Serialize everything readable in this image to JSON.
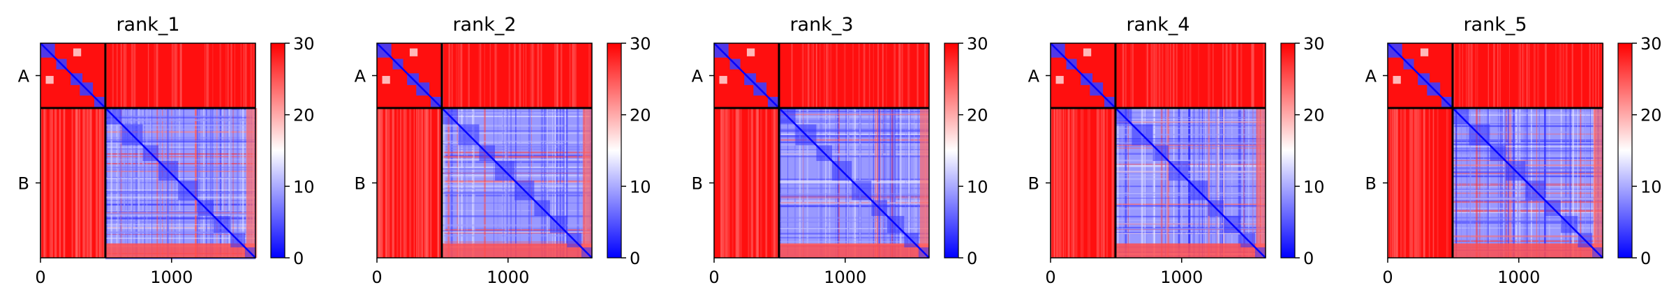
{
  "chart_data": {
    "type": "heatmap",
    "colormap": {
      "name": "bwr",
      "stops": [
        "#0000ff",
        "#ffffff",
        "#ff0000"
      ],
      "range": [
        0,
        30
      ],
      "ticks": [
        "0",
        "10",
        "20",
        "30"
      ]
    },
    "x_ticks": [
      "0",
      "1000"
    ],
    "x_tick_values": [
      0,
      1000
    ],
    "x_range": [
      0,
      1640
    ],
    "chain_labels": [
      "A",
      "B"
    ],
    "chain_boundary": 495,
    "panels": [
      {
        "title": "rank_1"
      },
      {
        "title": "rank_2"
      },
      {
        "title": "rank_3"
      },
      {
        "title": "rank_4"
      },
      {
        "title": "rank_5"
      }
    ]
  }
}
